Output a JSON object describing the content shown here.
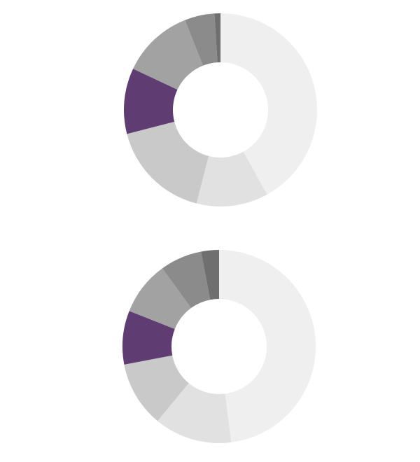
{
  "chart_data": [
    {
      "type": "donut",
      "values": [
        42,
        12,
        17,
        11,
        12,
        5,
        1
      ],
      "colors": [
        "#efefef",
        "#e0e1e0",
        "#c8c9c8",
        "#5f3d72",
        "#a1a2a1",
        "#8b8b8b",
        "#6f6f6f"
      ]
    },
    {
      "type": "donut",
      "values": [
        48,
        13,
        11,
        9,
        9,
        7,
        3
      ],
      "colors": [
        "#efefef",
        "#e0e1e0",
        "#c8c9c8",
        "#5f3d72",
        "#a1a2a1",
        "#8b8b8b",
        "#6f6f6f"
      ]
    }
  ]
}
